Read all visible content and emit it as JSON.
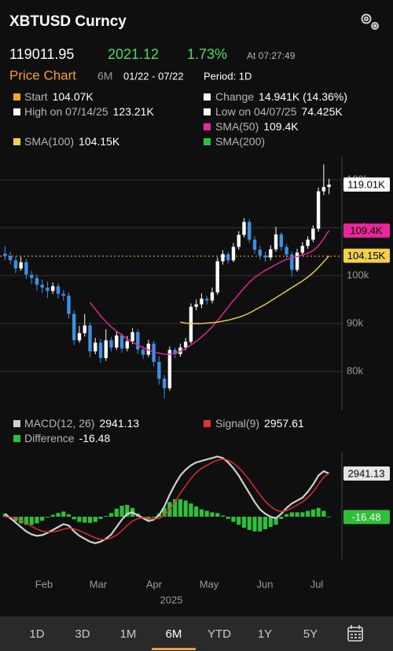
{
  "header": {
    "title": "XBTUSD Curncy",
    "last": "119011.95",
    "change": "2021.12",
    "change_pct": "1.73%",
    "time": "At 07:27:49"
  },
  "chart_tabs": {
    "active": "Price Chart",
    "range": "6M",
    "dates": "01/22 - 07/22",
    "period": "Period: 1D"
  },
  "legend": [
    {
      "label": "Start",
      "value": "104.07K",
      "color": "#f5a623"
    },
    {
      "label": "Change",
      "value": "14.941K (14.36%)",
      "color": "#ffffff"
    },
    {
      "label": "High on 07/14/25",
      "value": "123.21K",
      "color": "#ffffff"
    },
    {
      "label": "Low on 04/07/25",
      "value": "74.425K",
      "color": "#ffffff"
    }
  ],
  "chart_data": [
    {
      "type": "candlestick",
      "up_color": "#ffffff",
      "down_color": "#3d8fe0",
      "open": [
        104600,
        104100,
        103200,
        101500,
        102800,
        100200,
        99500,
        98100,
        97500,
        96800,
        97800,
        96200,
        95800,
        92000,
        86500,
        88000,
        89600,
        84200,
        86000,
        82800,
        86500,
        85000,
        87500,
        84800,
        86300,
        88200,
        84600,
        83500,
        85800,
        82000,
        78500,
        76500,
        84500,
        83600,
        85000,
        86200,
        93500,
        94000,
        95200,
        94800,
        96500,
        103000,
        104500,
        103200,
        106000,
        108500,
        111200,
        107500,
        105400,
        104200,
        103800,
        105500,
        108600,
        106000,
        104400,
        101200,
        104800,
        106200,
        107500,
        109800,
        117600,
        118500
      ],
      "high": [
        106200,
        105000,
        104000,
        103900,
        103500,
        101000,
        100300,
        99200,
        98800,
        98600,
        98400,
        97000,
        96500,
        92800,
        89500,
        92000,
        90200,
        87000,
        86800,
        88800,
        87200,
        88500,
        88000,
        87400,
        89000,
        88800,
        85300,
        86600,
        86400,
        83200,
        79300,
        85200,
        85000,
        85800,
        87000,
        94200,
        95000,
        96300,
        95800,
        97500,
        103800,
        105300,
        105000,
        106800,
        109300,
        112000,
        111800,
        108300,
        106200,
        105000,
        106300,
        110200,
        109000,
        106700,
        105000,
        105600,
        107000,
        108200,
        110500,
        118400,
        123210,
        120200
      ],
      "low": [
        103200,
        102400,
        100500,
        101000,
        99300,
        98200,
        96800,
        96300,
        95300,
        96200,
        95200,
        94800,
        91000,
        85500,
        86000,
        87300,
        83000,
        83600,
        81800,
        82200,
        84200,
        84500,
        83900,
        84200,
        85700,
        83700,
        82600,
        83000,
        81000,
        77200,
        74425,
        76000,
        82800,
        83100,
        84400,
        85800,
        92800,
        93200,
        94000,
        94200,
        96000,
        102300,
        102500,
        102800,
        105400,
        108000,
        106800,
        104600,
        103300,
        102900,
        103200,
        105000,
        105200,
        103600,
        99800,
        100800,
        104200,
        105600,
        107000,
        109200,
        116800,
        117000
      ],
      "close": [
        104100,
        103200,
        101500,
        102800,
        100200,
        99500,
        98100,
        97500,
        96800,
        97800,
        96200,
        95800,
        92000,
        86500,
        88000,
        89600,
        84200,
        86000,
        82800,
        86500,
        85000,
        87500,
        84800,
        86300,
        88200,
        84600,
        83500,
        85800,
        82000,
        78500,
        76500,
        84500,
        83600,
        85000,
        86200,
        93500,
        94000,
        95200,
        94800,
        96500,
        103000,
        104500,
        103200,
        106000,
        108500,
        111200,
        107500,
        105400,
        104200,
        103800,
        105500,
        108600,
        106000,
        104400,
        101200,
        104800,
        106200,
        107500,
        109800,
        117600,
        118500,
        119010
      ],
      "price_tag": "119.01K",
      "start_value": 104070,
      "ylim": [
        72300,
        124750
      ],
      "yticks": [
        {
          "value": 80000,
          "label": "80k"
        },
        {
          "value": 90000,
          "label": "90k"
        },
        {
          "value": 100000,
          "label": "100k"
        },
        {
          "value": 110000,
          "label": "110k"
        },
        {
          "value": 120000,
          "label": "120k"
        }
      ],
      "grid": true,
      "series": [
        {
          "name": "SMA(50)",
          "color": "#e8279a",
          "value_label": "109.4K",
          "values": [
            null,
            null,
            null,
            null,
            null,
            null,
            null,
            null,
            null,
            null,
            null,
            null,
            null,
            null,
            null,
            null,
            94400,
            93000,
            91600,
            90400,
            89300,
            88400,
            87600,
            86800,
            86100,
            85500,
            85000,
            84500,
            84100,
            83800,
            83600,
            83600,
            83800,
            84200,
            84800,
            85500,
            86300,
            87200,
            88200,
            89300,
            90600,
            92000,
            93400,
            94800,
            96100,
            97400,
            98600,
            99600,
            100400,
            101100,
            101700,
            102300,
            102900,
            103400,
            103700,
            104000,
            104300,
            104700,
            105200,
            106200,
            107700,
            109400
          ]
        },
        {
          "name": "SMA(100)",
          "color": "#f2d04b",
          "value_label": "104.15K",
          "values": [
            null,
            null,
            null,
            null,
            null,
            null,
            null,
            null,
            null,
            null,
            null,
            null,
            null,
            null,
            null,
            null,
            null,
            null,
            null,
            null,
            null,
            null,
            null,
            null,
            null,
            null,
            null,
            null,
            null,
            null,
            null,
            null,
            null,
            90300,
            90100,
            90000,
            90000,
            90000,
            90100,
            90200,
            90300,
            90500,
            90700,
            91000,
            91300,
            91700,
            92200,
            92800,
            93400,
            94000,
            94700,
            95400,
            96100,
            96800,
            97500,
            98200,
            98900,
            99700,
            100600,
            101700,
            102900,
            104150
          ]
        },
        {
          "name": "SMA(200)",
          "color": "#2fbf3a"
        }
      ]
    },
    {
      "type": "macd",
      "ylim": [
        -2780,
        4440
      ],
      "series": [
        {
          "name": "MACD(12, 26)",
          "color": "#d0d0d0",
          "value_label": "2941.13",
          "values": [
            200,
            -100,
            -400,
            -700,
            -1000,
            -1200,
            -1300,
            -1250,
            -1100,
            -900,
            -700,
            -500,
            -600,
            -1000,
            -1300,
            -1500,
            -1700,
            -1800,
            -1700,
            -1500,
            -1200,
            -700,
            -200,
            200,
            300,
            100,
            -100,
            -300,
            -200,
            100,
            700,
            1500,
            2200,
            2800,
            3200,
            3500,
            3700,
            3800,
            3900,
            4000,
            4100,
            4000,
            3700,
            3300,
            2800,
            2200,
            1600,
            1000,
            500,
            200,
            0,
            -100,
            200,
            600,
            900,
            1100,
            1300,
            1700,
            2200,
            2800,
            3100,
            2941.13
          ]
        },
        {
          "name": "Signal(9)",
          "color": "#e0303a",
          "value_label": "2957.61",
          "values": [
            0,
            -20,
            -100,
            -250,
            -450,
            -650,
            -850,
            -980,
            -1050,
            -1030,
            -960,
            -850,
            -770,
            -820,
            -950,
            -1100,
            -1280,
            -1440,
            -1550,
            -1550,
            -1450,
            -1250,
            -950,
            -600,
            -300,
            -120,
            -60,
            -100,
            -150,
            -120,
            100,
            500,
            1000,
            1600,
            2100,
            2600,
            3000,
            3300,
            3500,
            3700,
            3850,
            3920,
            3850,
            3650,
            3350,
            2950,
            2500,
            2000,
            1500,
            1050,
            700,
            450,
            350,
            420,
            600,
            800,
            1000,
            1300,
            1700,
            2200,
            2700,
            2957.61
          ]
        },
        {
          "name": "Difference",
          "color": "#2fbf3a",
          "value_label": "-16.48",
          "values": [
            200,
            -80,
            -300,
            -450,
            -550,
            -550,
            -450,
            -270,
            -50,
            130,
            260,
            350,
            170,
            -180,
            -350,
            -400,
            -420,
            -360,
            -150,
            50,
            250,
            550,
            750,
            800,
            600,
            220,
            -40,
            -200,
            -50,
            220,
            600,
            1000,
            1200,
            1200,
            1100,
            900,
            700,
            500,
            400,
            300,
            250,
            80,
            -150,
            -350,
            -550,
            -750,
            -900,
            -1000,
            -1000,
            -850,
            -700,
            -550,
            -150,
            180,
            300,
            300,
            300,
            400,
            500,
            600,
            400,
            -16.48
          ]
        }
      ]
    }
  ],
  "x_labels": [
    "Feb",
    "Mar",
    "Apr",
    "May",
    "Jun",
    "Jul"
  ],
  "year": "2025",
  "range_buttons": [
    "1D",
    "3D",
    "1M",
    "6M",
    "YTD",
    "1Y",
    "5Y"
  ],
  "selected_range": 3
}
